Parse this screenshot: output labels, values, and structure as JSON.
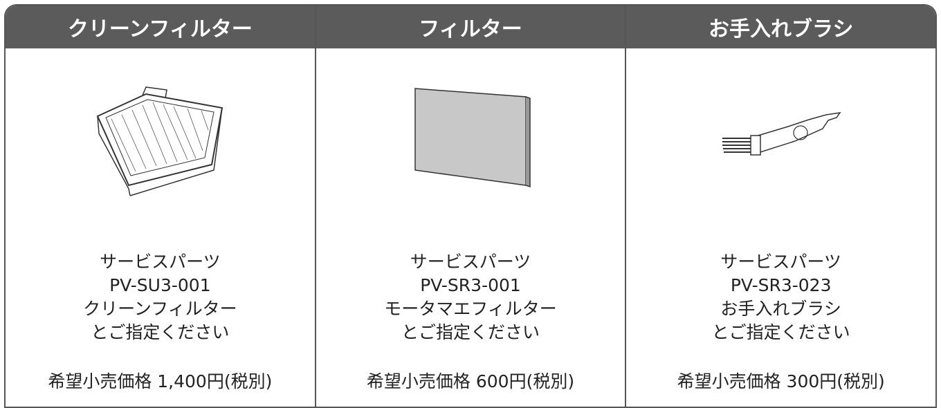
{
  "columns": [
    {
      "header": "クリーンフィルター",
      "lines": [
        "サービスパーツ",
        "PV-SU3-001",
        "クリーンフィルター",
        "とご指定ください"
      ],
      "price": "希望小売価格 1,400円(税別)"
    },
    {
      "header": "フィルター",
      "lines": [
        "サービスパーツ",
        "PV-SR3-001",
        "モータマエフィルター",
        "とご指定ください"
      ],
      "price": "希望小売価格 600円(税別)"
    },
    {
      "header": "お手入れブラシ",
      "lines": [
        "サービスパーツ",
        "PV-SR3-023",
        "お手入れブラシ",
        "とご指定ください"
      ],
      "price": "希望小売価格 300円(税別)"
    }
  ]
}
